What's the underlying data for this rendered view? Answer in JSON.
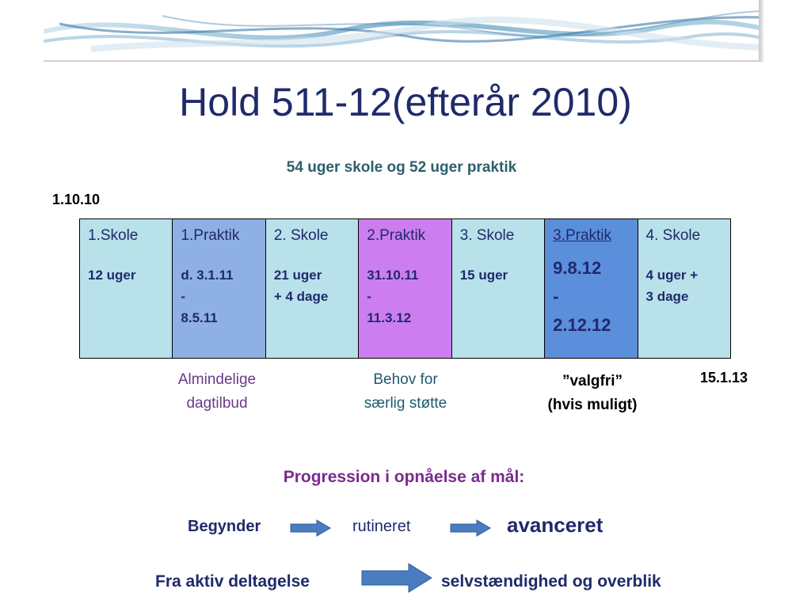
{
  "header": {
    "title": "Hold 511-12(efterår 2010)",
    "subtitle": "54 uger skole og 52 uger praktik"
  },
  "timeline": {
    "start_date": "1.10.10",
    "end_date": "15.1.13",
    "cells": [
      {
        "name": "1.Skole",
        "detail": "12 uger",
        "color": "#b9e1ea"
      },
      {
        "name": "1.Praktik",
        "detail": "d. 3.1.11\n       -\n   8.5.11",
        "color": "#8fb0e3"
      },
      {
        "name": "2. Skole",
        "detail": "21 uger\n+ 4 dage",
        "color": "#b9e1ea"
      },
      {
        "name": "2.Praktik",
        "detail": "31.10.11\n      -\n11.3.12",
        "color": "#cc7ef0"
      },
      {
        "name": "3. Skole",
        "detail": "15 uger",
        "color": "#b9e1ea"
      },
      {
        "name": "3.Praktik",
        "detail": "9.8.12\n      -\n2.12.12",
        "color": "#5b8fdc"
      },
      {
        "name": "4. Skole",
        "detail": "4 uger    +\n3 dage",
        "color": "#b9e1ea"
      }
    ]
  },
  "notes": {
    "almindelige": "Almindelige\ndagtilbud",
    "behov": "Behov for\nsærlig støtte",
    "valgfri": "”valgfri”\n(hvis muligt)"
  },
  "progression": {
    "title": "Progression i opnåelse af mål:",
    "row1": {
      "a": "Begynder",
      "b": "rutineret",
      "c": "avanceret"
    },
    "row2": {
      "a": "Fra aktiv deltagelse",
      "b": "selvstændighed og overblik"
    }
  },
  "colors": {
    "title": "#1f2a6b",
    "subtitle": "#2e5f6b",
    "note_purple": "#6a3a8a",
    "note_teal": "#1f5a6e",
    "arrow": "#4a7cc0"
  }
}
